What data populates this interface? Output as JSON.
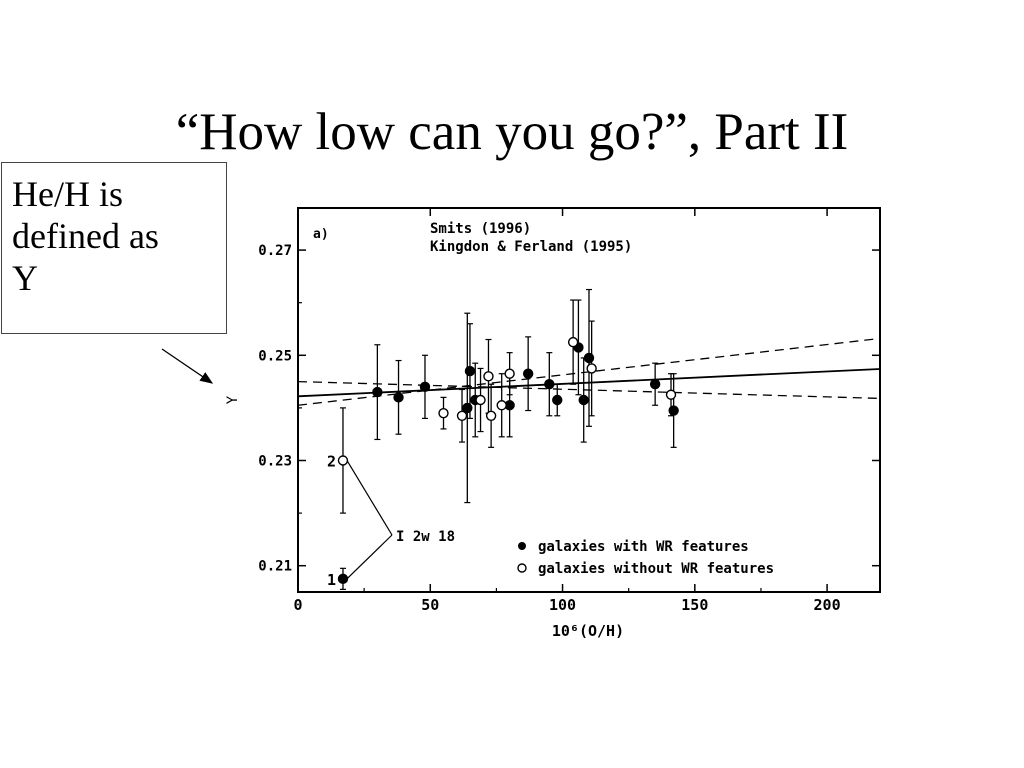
{
  "slide": {
    "title": "“How low can you go?”, Part II",
    "callout_lines": [
      "He/H is",
      "defined as",
      "Y"
    ]
  },
  "chart_data": {
    "type": "scatter",
    "panel_label": "a)",
    "references": [
      "Smits (1996)",
      "Kingdon & Ferland (1995)"
    ],
    "xlabel": "10⁶(O/H)",
    "ylabel": "Y",
    "xlim": [
      0,
      220
    ],
    "ylim": [
      0.205,
      0.278
    ],
    "xticks": [
      0,
      50,
      100,
      150,
      200
    ],
    "xtick_labels": [
      "0",
      "50",
      "100",
      "150",
      "200"
    ],
    "yticks": [
      0.21,
      0.23,
      0.25,
      0.27
    ],
    "ytick_labels": [
      "0.21",
      "0.23",
      "0.25",
      "0.27"
    ],
    "grid": false,
    "legend_position": "bottom-right",
    "legend": [
      {
        "symbol": "filled",
        "label": "galaxies with WR features"
      },
      {
        "symbol": "open",
        "label": "galaxies without WR features"
      }
    ],
    "series": [
      {
        "name": "galaxies with WR features",
        "symbol": "filled",
        "points": [
          {
            "x": 30,
            "y": 0.243,
            "yerr": 0.009
          },
          {
            "x": 38,
            "y": 0.242,
            "yerr": 0.007
          },
          {
            "x": 48,
            "y": 0.244,
            "yerr": 0.006
          },
          {
            "x": 64,
            "y": 0.24,
            "yerr": 0.018
          },
          {
            "x": 65,
            "y": 0.247,
            "yerr": 0.009
          },
          {
            "x": 67,
            "y": 0.2415,
            "yerr": 0.007
          },
          {
            "x": 80,
            "y": 0.2405,
            "yerr": 0.006
          },
          {
            "x": 87,
            "y": 0.2465,
            "yerr": 0.007
          },
          {
            "x": 95,
            "y": 0.2445,
            "yerr": 0.006
          },
          {
            "x": 98,
            "y": 0.2415,
            "yerr": 0.003
          },
          {
            "x": 106,
            "y": 0.2515,
            "yerr": 0.009
          },
          {
            "x": 108,
            "y": 0.2415,
            "yerr": 0.008
          },
          {
            "x": 110,
            "y": 0.2495,
            "yerr": 0.013
          },
          {
            "x": 135,
            "y": 0.2445,
            "yerr": 0.004
          },
          {
            "x": 142,
            "y": 0.2395,
            "yerr": 0.007
          }
        ]
      },
      {
        "name": "galaxies without WR features",
        "symbol": "open",
        "points": [
          {
            "x": 55,
            "y": 0.239,
            "yerr": 0.003
          },
          {
            "x": 62,
            "y": 0.2385,
            "yerr": 0.005
          },
          {
            "x": 69,
            "y": 0.2415,
            "yerr": 0.006
          },
          {
            "x": 72,
            "y": 0.246,
            "yerr": 0.007
          },
          {
            "x": 73,
            "y": 0.2385,
            "yerr": 0.006
          },
          {
            "x": 77,
            "y": 0.2405,
            "yerr": 0.006
          },
          {
            "x": 80,
            "y": 0.2465,
            "yerr": 0.004
          },
          {
            "x": 104,
            "y": 0.2525,
            "yerr": 0.008
          },
          {
            "x": 111,
            "y": 0.2475,
            "yerr": 0.009
          },
          {
            "x": 141,
            "y": 0.2425,
            "yerr": 0.004
          }
        ]
      }
    ],
    "special_points": [
      {
        "label": "2",
        "x": 17,
        "y": 0.23,
        "yerr": 0.01,
        "symbol": "open"
      },
      {
        "label": "1",
        "x": 17,
        "y": 0.2075,
        "yerr": 0.002,
        "symbol": "filled"
      }
    ],
    "special_annotation": "I 2w 18",
    "fit_lines": [
      {
        "style": "solid",
        "points": [
          [
            0,
            0.2422
          ],
          [
            220,
            0.2474
          ]
        ]
      },
      {
        "style": "dashed",
        "points": [
          [
            0,
            0.2405
          ],
          [
            220,
            0.2532
          ]
        ]
      },
      {
        "style": "dashed",
        "points": [
          [
            0,
            0.245
          ],
          [
            220,
            0.2418
          ]
        ]
      }
    ]
  }
}
